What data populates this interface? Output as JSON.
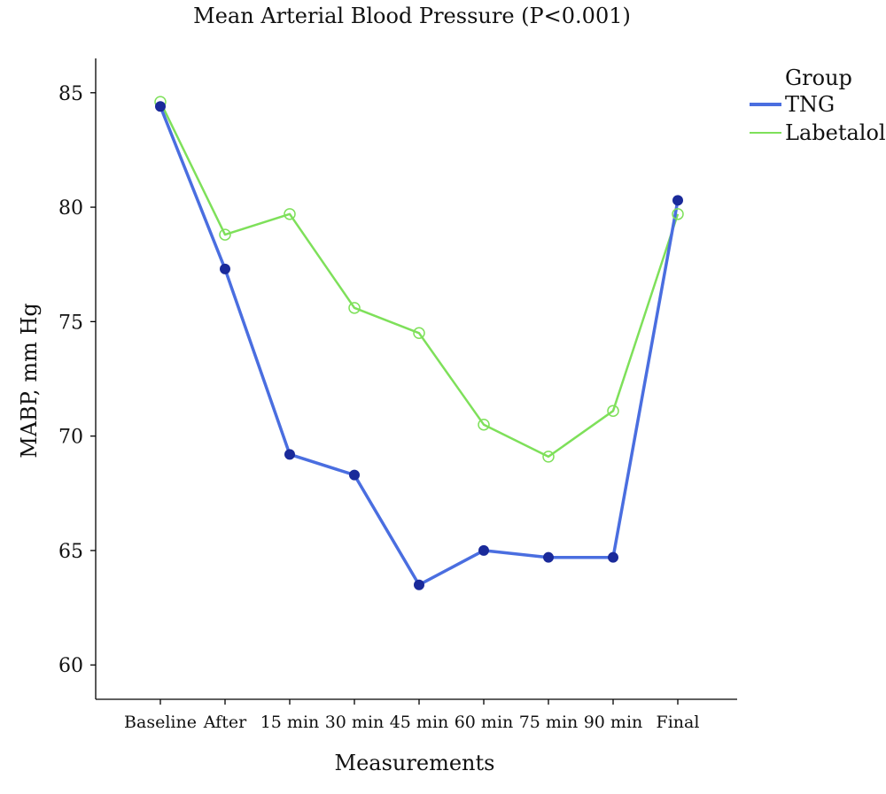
{
  "chart_data": {
    "type": "line",
    "title": "Mean Arterial Blood Pressure (P<0.001)",
    "xlabel": "Measurements",
    "ylabel": "MABP, mm Hg",
    "categories": [
      "Baseline",
      "After",
      "15 min",
      "30 min",
      "45 min",
      "60 min",
      "75 min",
      "90 min",
      "Final"
    ],
    "ylim": [
      58.5,
      86.5
    ],
    "yticks": [
      60,
      65,
      70,
      75,
      80,
      85
    ],
    "grid": false,
    "legend": {
      "title": "Group",
      "position": "top-right"
    },
    "series": [
      {
        "name": "TNG",
        "color": "#4a6ee0",
        "marker": "filled-circle",
        "values": [
          84.4,
          77.3,
          69.2,
          68.3,
          63.5,
          65.0,
          64.7,
          64.7,
          80.3
        ]
      },
      {
        "name": "Labetalol",
        "color": "#7ee05a",
        "marker": "open-circle",
        "values": [
          84.6,
          78.8,
          79.7,
          75.6,
          74.5,
          70.5,
          69.1,
          71.1,
          79.7
        ]
      }
    ]
  }
}
